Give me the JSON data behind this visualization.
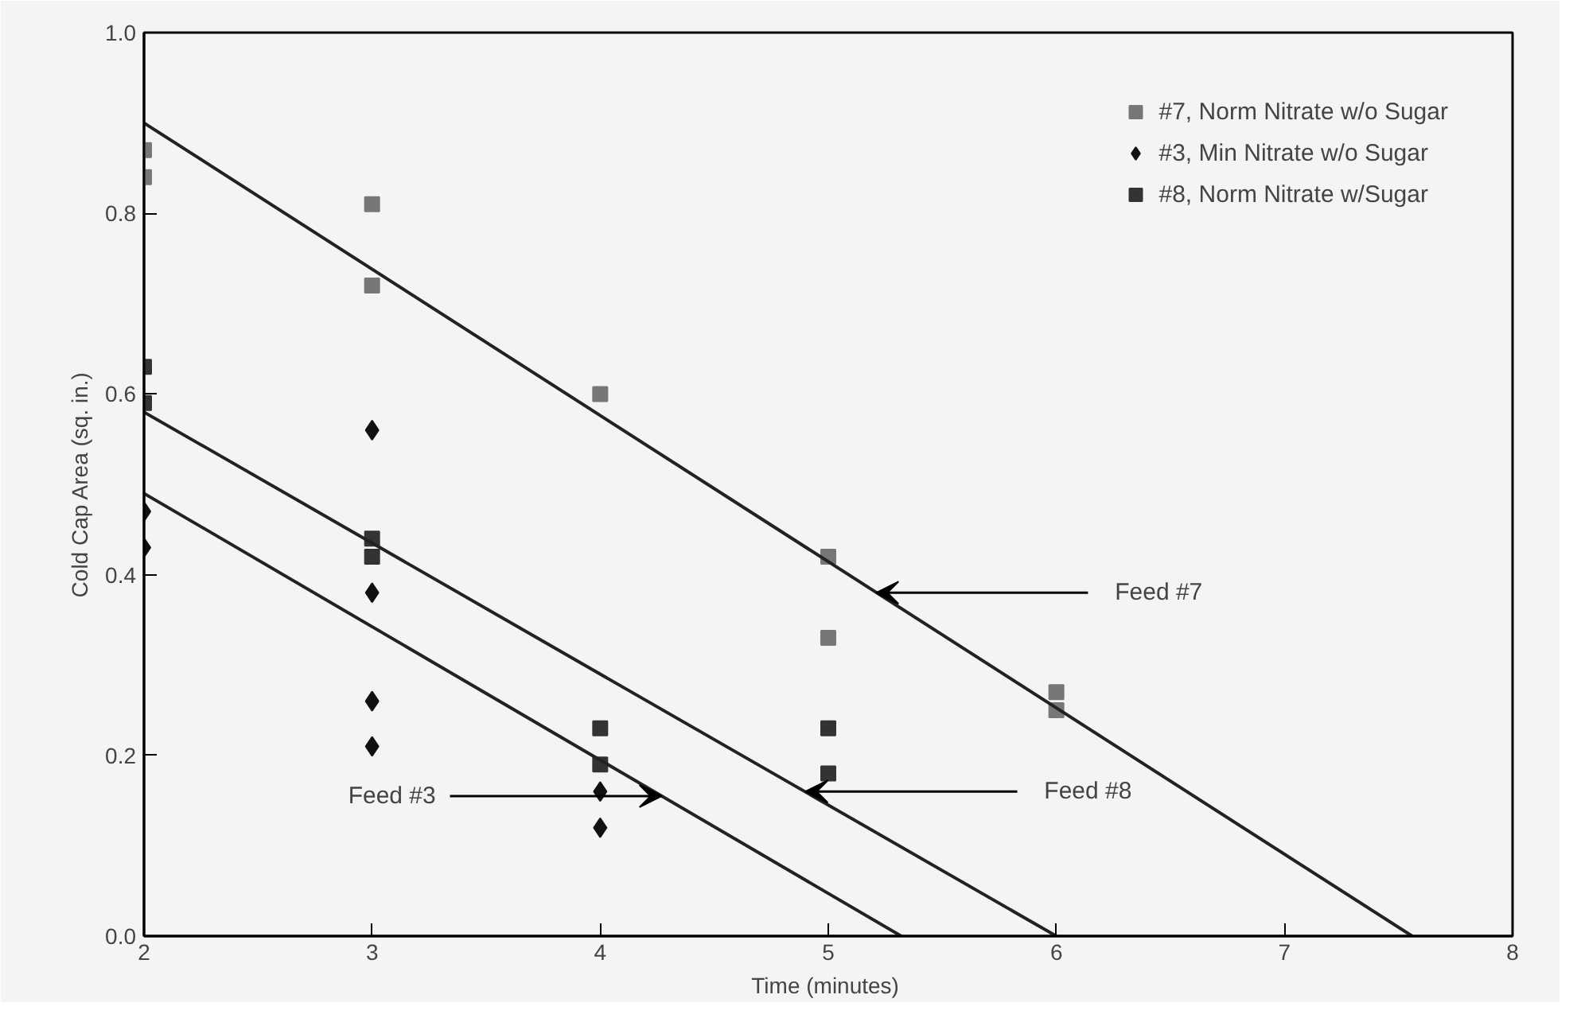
{
  "chart_data": {
    "type": "scatter",
    "xlabel": "Time  (minutes)",
    "ylabel": "Cold Cap Area (sq. in.)",
    "xlim": [
      2,
      8
    ],
    "ylim": [
      0,
      1.0
    ],
    "xticks": [
      2,
      3,
      4,
      5,
      6,
      7,
      8
    ],
    "yticks": [
      {
        "value": 0,
        "label": "0.0"
      },
      0.2,
      0.4,
      0.6,
      0.8,
      {
        "value": 1,
        "label": "1.0"
      }
    ],
    "grid": false,
    "legend": "top right",
    "series": [
      {
        "name": "#7, Norm Nitrate w/o Sugar",
        "color": "#777777",
        "marker": "square",
        "x": [
          2,
          2,
          3,
          3,
          4,
          5,
          5,
          6,
          6
        ],
        "values": [
          0.87,
          0.84,
          0.81,
          0.72,
          0.6,
          0.42,
          0.33,
          0.27,
          0.25
        ]
      },
      {
        "name": "#3, Min Nitrate w/o Sugar",
        "color": "#111111",
        "marker": "diamond",
        "x": [
          2,
          2,
          3,
          3,
          3,
          3,
          4,
          4
        ],
        "values": [
          0.47,
          0.43,
          0.56,
          0.38,
          0.26,
          0.21,
          0.16,
          0.12
        ]
      },
      {
        "name": "#8, Norm Nitrate w/Sugar",
        "color": "#333333",
        "marker": "square",
        "x": [
          2,
          2,
          3,
          3,
          4,
          4,
          5,
          5
        ],
        "values": [
          0.63,
          0.59,
          0.44,
          0.42,
          0.23,
          0.19,
          0.23,
          0.18
        ]
      },
      {
        "type": "line",
        "color": "#222222",
        "x": [
          2,
          7.56
        ],
        "values": [
          0.9,
          0
        ]
      },
      {
        "type": "line",
        "color": "#222222",
        "x": [
          2,
          6.0
        ],
        "values": [
          0.58,
          0
        ]
      },
      {
        "type": "line",
        "color": "#222222",
        "x": [
          2,
          5.32
        ],
        "values": [
          0.49,
          0
        ]
      }
    ],
    "annotations": [
      {
        "text": "Feed #7",
        "x": 5.21,
        "y": 0.38
      },
      {
        "text": "Feed #8",
        "x": 4.9,
        "y": 0.16
      },
      {
        "text": "Feed #3",
        "x": 4.27,
        "y": 0.155
      }
    ]
  }
}
